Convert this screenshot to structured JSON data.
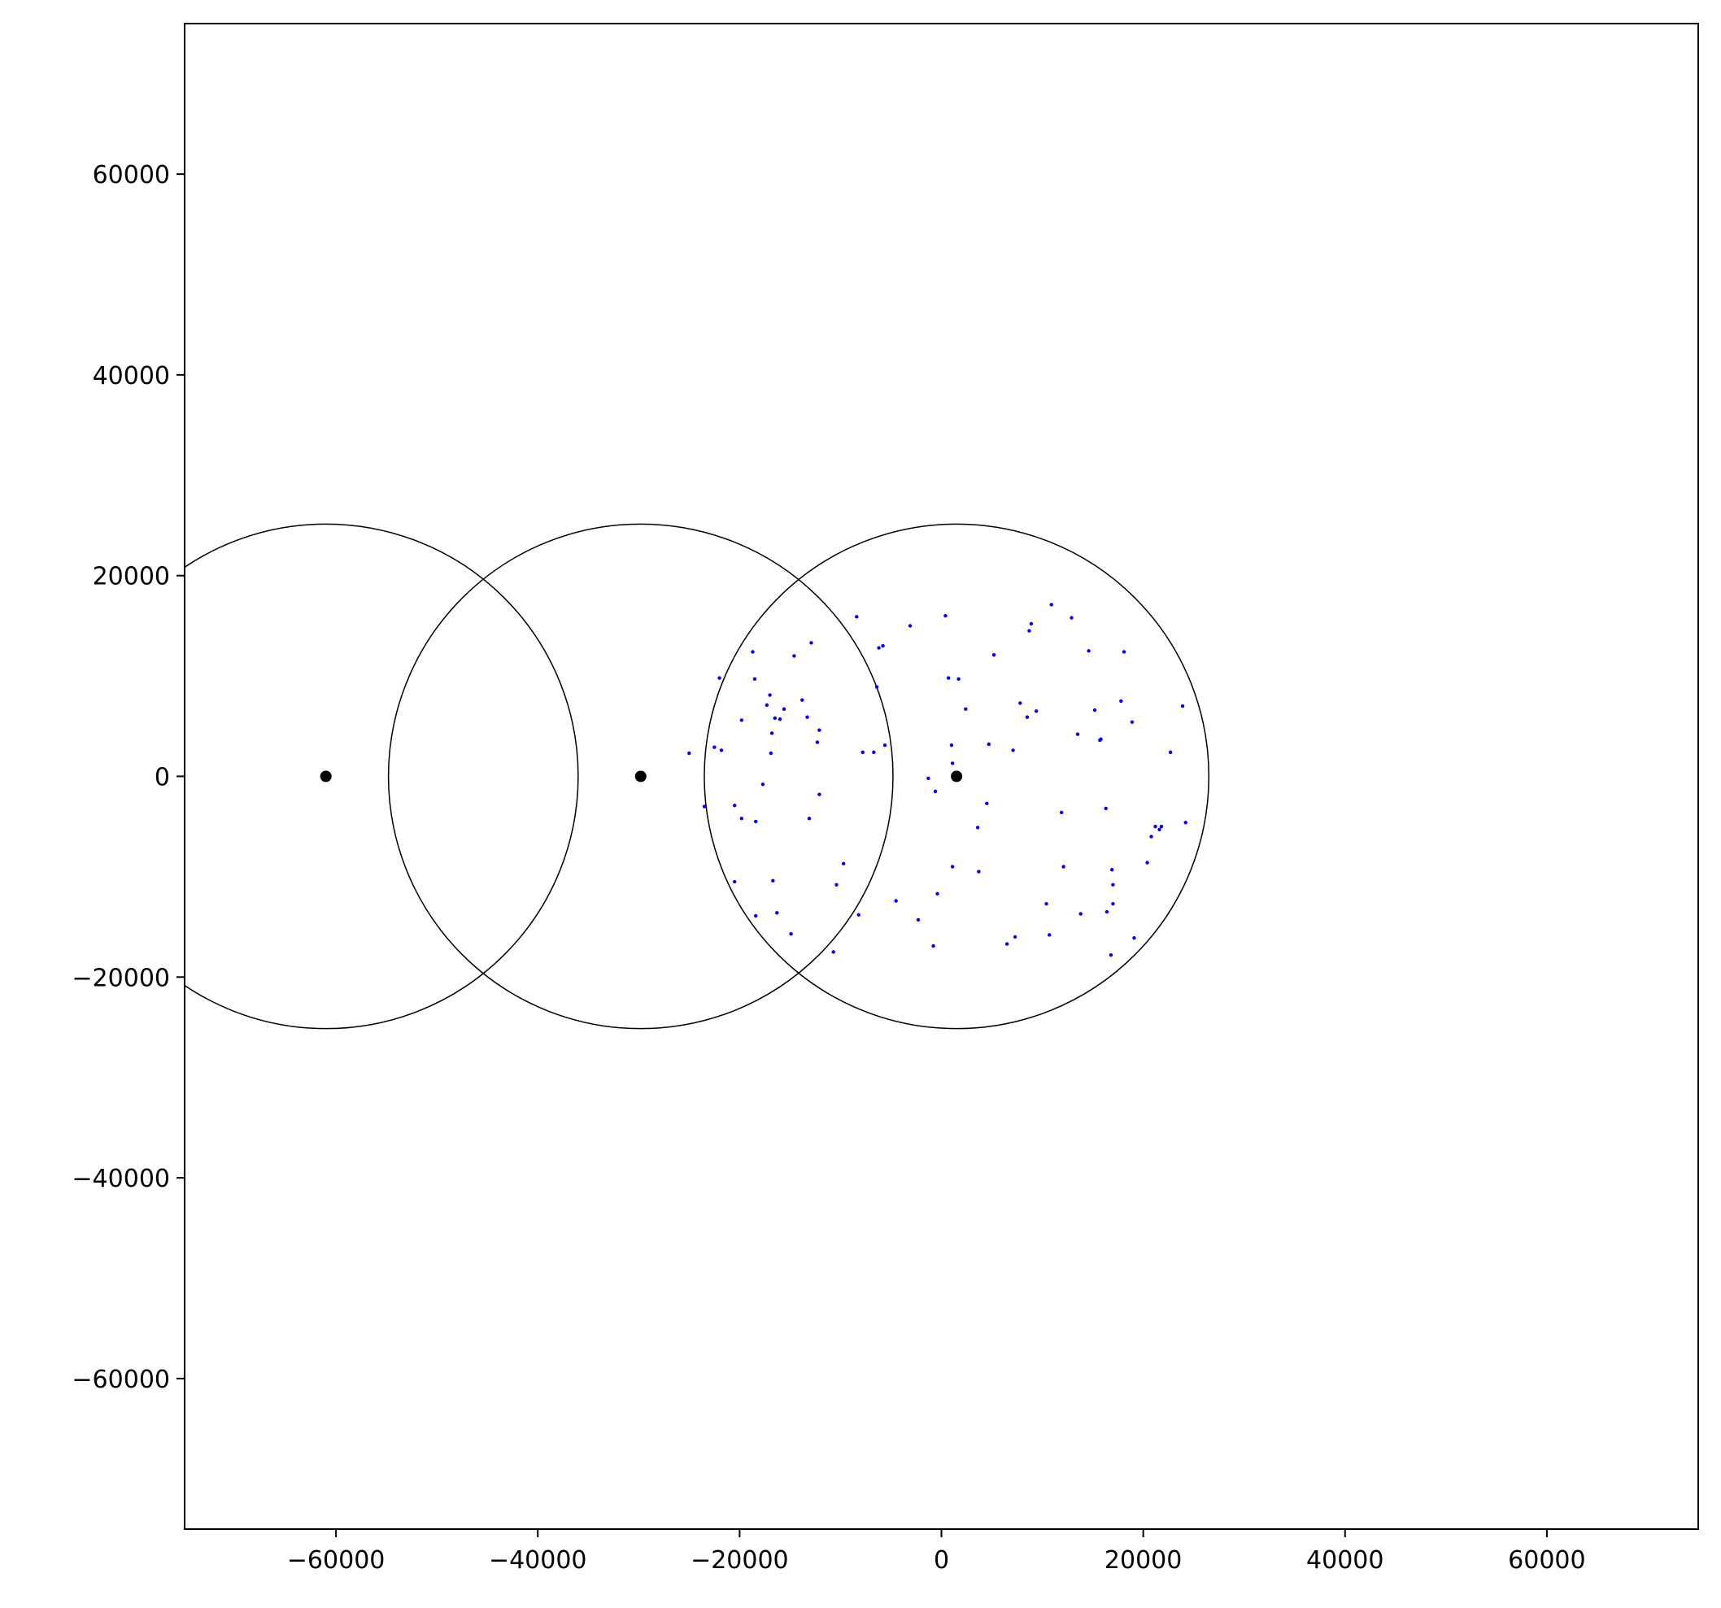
{
  "chart_data": {
    "type": "scatter",
    "title": "",
    "xlabel": "",
    "ylabel": "",
    "xlim": [
      -75000,
      75000
    ],
    "ylim": [
      -75000,
      75000
    ],
    "grid": false,
    "x_ticks": [
      -60000,
      -40000,
      -20000,
      0,
      20000,
      40000,
      60000
    ],
    "y_ticks": [
      -60000,
      -40000,
      -20000,
      0,
      20000,
      40000,
      60000
    ],
    "x_tick_labels": [
      "−60000",
      "−40000",
      "−20000",
      "0",
      "20000",
      "40000",
      "60000"
    ],
    "y_tick_labels": [
      "−60000",
      "−40000",
      "−20000",
      "0",
      "20000",
      "40000",
      "60000"
    ],
    "circles": [
      {
        "cx": -61000,
        "cy": 0,
        "r": 25000
      },
      {
        "cx": -29800,
        "cy": 0,
        "r": 25000
      },
      {
        "cx": 1500,
        "cy": 0,
        "r": 25000
      }
    ],
    "centers": {
      "color": "#000000",
      "points": [
        [
          -61000,
          0
        ],
        [
          -29800,
          0
        ],
        [
          1500,
          0
        ]
      ]
    },
    "scatter": {
      "color": "#0000ff",
      "points": [
        [
          -25000,
          2300
        ],
        [
          -23500,
          -3000
        ],
        [
          -22000,
          9800
        ],
        [
          -22500,
          2900
        ],
        [
          -21800,
          2600
        ],
        [
          -20500,
          -10500
        ],
        [
          -20500,
          -2900
        ],
        [
          -19800,
          5600
        ],
        [
          -19800,
          -4200
        ],
        [
          -18700,
          12400
        ],
        [
          -18500,
          9700
        ],
        [
          -18400,
          -4500
        ],
        [
          -18400,
          -13900
        ],
        [
          -17700,
          -800
        ],
        [
          -17300,
          7100
        ],
        [
          -17000,
          8100
        ],
        [
          -16900,
          2300
        ],
        [
          -16800,
          4300
        ],
        [
          -16700,
          -10400
        ],
        [
          -16500,
          5800
        ],
        [
          -16300,
          -13600
        ],
        [
          -16000,
          5700
        ],
        [
          -15600,
          6700
        ],
        [
          -14900,
          -15700
        ],
        [
          -14600,
          12000
        ],
        [
          -13800,
          7600
        ],
        [
          -13300,
          5900
        ],
        [
          -13100,
          -4200
        ],
        [
          -12900,
          13300
        ],
        [
          -12300,
          3400
        ],
        [
          -12100,
          4600
        ],
        [
          -12100,
          -1800
        ],
        [
          -10700,
          -17500
        ],
        [
          -10400,
          -10800
        ],
        [
          -9700,
          -8700
        ],
        [
          -8400,
          15900
        ],
        [
          -8200,
          -13800
        ],
        [
          -7800,
          2400
        ],
        [
          -6700,
          2400
        ],
        [
          -6400,
          8900
        ],
        [
          -6200,
          12800
        ],
        [
          -5800,
          13000
        ],
        [
          -5600,
          3100
        ],
        [
          -4500,
          -12400
        ],
        [
          -3100,
          15000
        ],
        [
          -2300,
          -14300
        ],
        [
          -1300,
          -200
        ],
        [
          -800,
          -16900
        ],
        [
          -600,
          -1500
        ],
        [
          -400,
          -11700
        ],
        [
          400,
          16000
        ],
        [
          700,
          9800
        ],
        [
          1000,
          3100
        ],
        [
          1100,
          -9000
        ],
        [
          1100,
          1300
        ],
        [
          1700,
          9700
        ],
        [
          2400,
          6700
        ],
        [
          3600,
          -5100
        ],
        [
          3700,
          -9500
        ],
        [
          4500,
          -2700
        ],
        [
          4700,
          3200
        ],
        [
          5200,
          12100
        ],
        [
          6500,
          -16700
        ],
        [
          7100,
          2600
        ],
        [
          7300,
          -16000
        ],
        [
          7800,
          7300
        ],
        [
          8500,
          5900
        ],
        [
          8700,
          14500
        ],
        [
          8900,
          15200
        ],
        [
          9400,
          6500
        ],
        [
          10400,
          -12700
        ],
        [
          10700,
          -15800
        ],
        [
          10900,
          17100
        ],
        [
          11900,
          -3600
        ],
        [
          12100,
          -9000
        ],
        [
          12900,
          15800
        ],
        [
          13500,
          4200
        ],
        [
          13800,
          -13700
        ],
        [
          14600,
          12500
        ],
        [
          15200,
          6600
        ],
        [
          15700,
          3600
        ],
        [
          15800,
          3700
        ],
        [
          16300,
          -3200
        ],
        [
          16400,
          -13500
        ],
        [
          16800,
          -17800
        ],
        [
          16900,
          -9300
        ],
        [
          17000,
          -10800
        ],
        [
          17000,
          -12700
        ],
        [
          17800,
          7500
        ],
        [
          18100,
          12400
        ],
        [
          18900,
          5400
        ],
        [
          19100,
          -16100
        ],
        [
          20400,
          -8600
        ],
        [
          20800,
          -6000
        ],
        [
          21200,
          -5000
        ],
        [
          21600,
          -5300
        ],
        [
          21800,
          -5000
        ],
        [
          22700,
          2400
        ],
        [
          23900,
          7000
        ],
        [
          24200,
          -4600
        ]
      ]
    }
  }
}
